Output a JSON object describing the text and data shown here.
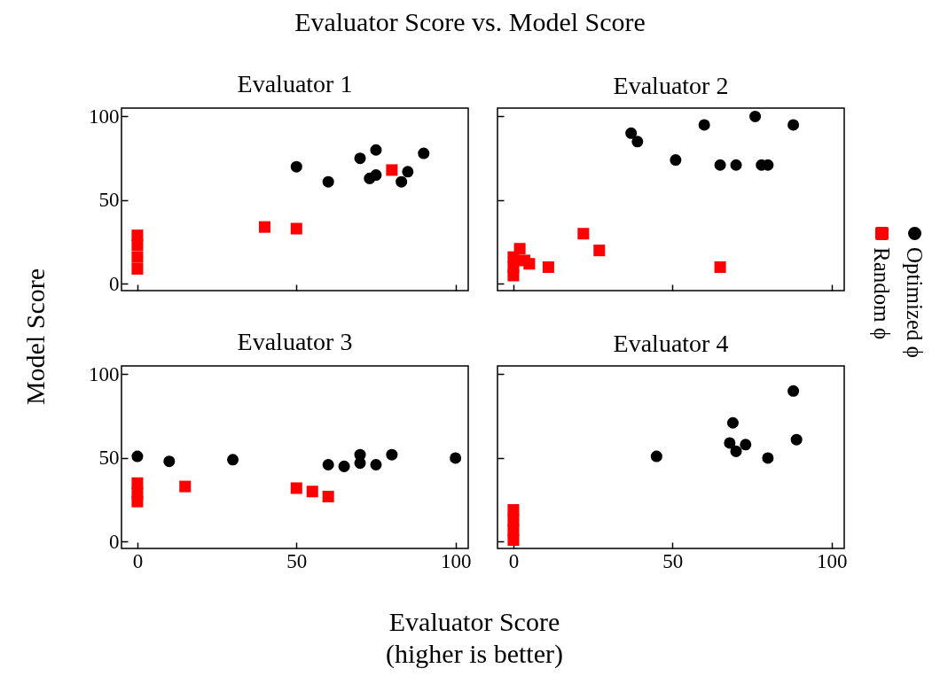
{
  "chart_data": [
    {
      "type": "scatter",
      "title": "Evaluator 1",
      "annotations": [
        "Evaluator Score vs. Model Score"
      ],
      "xlabel": "Evaluator Score\n(higher is better)",
      "ylabel": "Model Score",
      "legend": "right",
      "tick_labels": "y",
      "xlim": [
        -5,
        104
      ],
      "ylim": [
        -4,
        105
      ],
      "xticks": [
        0,
        50,
        100
      ],
      "yticks": [
        0,
        50,
        100
      ],
      "series": [
        {
          "name": "Optimized ϕ",
          "color": "#000000",
          "marker": "circle",
          "x": [
            50,
            60,
            70,
            75,
            73,
            75,
            83,
            85,
            90
          ],
          "values": [
            70,
            61,
            75,
            80,
            63,
            65,
            61,
            67,
            78
          ]
        },
        {
          "name": "Random ϕ",
          "color": "#ff0000",
          "marker": "square",
          "x": [
            40,
            50,
            80,
            0,
            0,
            0,
            0
          ],
          "values": [
            34,
            33,
            68,
            9,
            16,
            23,
            29
          ]
        }
      ]
    },
    {
      "type": "scatter",
      "title": "Evaluator 2",
      "tick_labels": false,
      "xlim": [
        -5,
        104
      ],
      "ylim": [
        -4,
        105
      ],
      "xticks": [
        0,
        50,
        100
      ],
      "yticks": [
        0,
        50,
        100
      ],
      "series": [
        {
          "color": "#000000",
          "marker": "circle",
          "x": [
            37,
            39,
            51,
            60,
            65,
            70,
            76,
            78,
            80,
            88
          ],
          "values": [
            90,
            85,
            74,
            95,
            71,
            71,
            100,
            71,
            71,
            95
          ]
        },
        {
          "color": "#ff0000",
          "marker": "square",
          "x": [
            22,
            27,
            65,
            11,
            5,
            2,
            3.5,
            0,
            0,
            0
          ],
          "values": [
            30,
            20,
            10,
            10,
            12,
            21,
            14,
            16,
            5,
            10
          ]
        }
      ]
    },
    {
      "type": "scatter",
      "title": "Evaluator 3",
      "xlim": [
        -5,
        104
      ],
      "ylim": [
        -4,
        105
      ],
      "xticks": [
        0,
        50,
        100
      ],
      "yticks": [
        0,
        50,
        100
      ],
      "series": [
        {
          "color": "#000000",
          "marker": "circle",
          "x": [
            0,
            10,
            30,
            60,
            65,
            70,
            70,
            75,
            80,
            100
          ],
          "values": [
            51,
            48,
            49,
            46,
            45,
            52,
            47,
            46,
            52,
            50
          ]
        },
        {
          "color": "#ff0000",
          "marker": "square",
          "x": [
            15,
            50,
            55,
            60,
            0,
            0,
            0
          ],
          "values": [
            33,
            32,
            30,
            27,
            24,
            29,
            35
          ]
        }
      ]
    },
    {
      "type": "scatter",
      "title": "Evaluator 4",
      "tick_labels": "x",
      "xlim": [
        -5,
        104
      ],
      "ylim": [
        -4,
        105
      ],
      "xticks": [
        0,
        50,
        100
      ],
      "yticks": [
        0,
        50,
        100
      ],
      "series": [
        {
          "color": "#000000",
          "marker": "circle",
          "x": [
            45,
            69,
            68,
            70,
            73,
            80,
            88,
            89
          ],
          "values": [
            51,
            71,
            59,
            54,
            58,
            50,
            90,
            61
          ]
        },
        {
          "color": "#ff0000",
          "marker": "square",
          "x": [
            0,
            0,
            0,
            0
          ],
          "values": [
            1,
            7,
            13,
            19
          ]
        }
      ]
    }
  ]
}
